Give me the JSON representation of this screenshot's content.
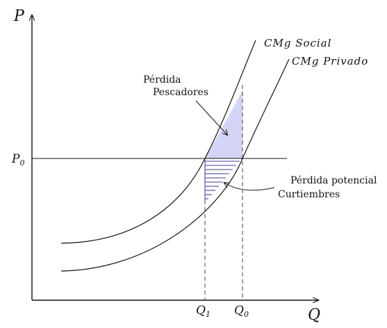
{
  "axes": {
    "y_label": "P",
    "x_label": "Q"
  },
  "price_label": {
    "base": "P",
    "sub": "0"
  },
  "quantity_labels": [
    {
      "base": "Q",
      "sub": "1"
    },
    {
      "base": "Q",
      "sub": "0"
    }
  ],
  "curves": {
    "social": "CMg Social",
    "private": "CMg Privado"
  },
  "annotations": {
    "loss_fishers": [
      "Pérdida",
      "Pescadores"
    ],
    "loss_tanneries": [
      "Pérdida potencial",
      "Curtiembres"
    ]
  },
  "colors": {
    "line": "#111111",
    "fill_area": "#d4d4f7",
    "hatch": "#3d3d9a",
    "dashed": "#555555"
  }
}
